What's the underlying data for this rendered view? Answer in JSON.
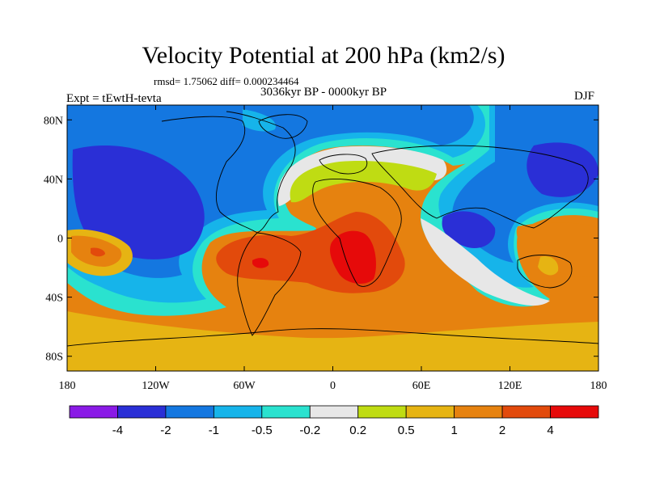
{
  "chart_data": {
    "type": "filled-contour-map",
    "title": "Velocity Potential at 200 hPa (km2/s)",
    "stats": "rmsd= 1.75062 diff= 0.000234464",
    "period": "3036kyr BP - 0000kyr BP",
    "experiment": "Expt = tEwtH-tevta",
    "season": "DJF",
    "lon_ticks": [
      "180",
      "120W",
      "60W",
      "0",
      "60E",
      "120E",
      "180"
    ],
    "lat_ticks": [
      "80N",
      "40N",
      "0",
      "40S",
      "80S"
    ],
    "colorbar": {
      "labels": [
        "-4",
        "-2",
        "-1",
        "-0.5",
        "-0.2",
        "0.2",
        "0.5",
        "1",
        "2",
        "4"
      ],
      "colors": [
        "#8a1ae6",
        "#2a2fd6",
        "#1477e0",
        "#16b4ea",
        "#2ae2cf",
        "#e7e7e7",
        "#bfdc13",
        "#e6b413",
        "#e6820f",
        "#e24a0c",
        "#e60a0a"
      ]
    }
  }
}
